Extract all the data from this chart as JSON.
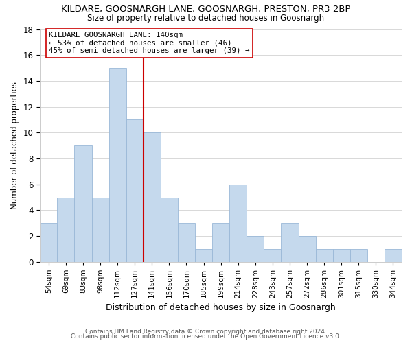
{
  "title": "KILDARE, GOOSNARGH LANE, GOOSNARGH, PRESTON, PR3 2BP",
  "subtitle": "Size of property relative to detached houses in Goosnargh",
  "xlabel": "Distribution of detached houses by size in Goosnargh",
  "ylabel": "Number of detached properties",
  "bin_labels": [
    "54sqm",
    "69sqm",
    "83sqm",
    "98sqm",
    "112sqm",
    "127sqm",
    "141sqm",
    "156sqm",
    "170sqm",
    "185sqm",
    "199sqm",
    "214sqm",
    "228sqm",
    "243sqm",
    "257sqm",
    "272sqm",
    "286sqm",
    "301sqm",
    "315sqm",
    "330sqm",
    "344sqm"
  ],
  "bar_heights": [
    3,
    5,
    9,
    5,
    15,
    11,
    10,
    5,
    3,
    1,
    3,
    6,
    2,
    1,
    3,
    2,
    1,
    1,
    1,
    0,
    1
  ],
  "bar_color": "#c5d9ed",
  "bar_edge_color": "#9ab8d8",
  "reference_line_index": 6,
  "reference_line_color": "#cc0000",
  "annotation_line1": "KILDARE GOOSNARGH LANE: 140sqm",
  "annotation_line2": "← 53% of detached houses are smaller (46)",
  "annotation_line3": "45% of semi-detached houses are larger (39) →",
  "annotation_box_color": "#ffffff",
  "annotation_box_edge": "#cc0000",
  "ylim": [
    0,
    18
  ],
  "yticks": [
    0,
    2,
    4,
    6,
    8,
    10,
    12,
    14,
    16,
    18
  ],
  "footnote1": "Contains HM Land Registry data © Crown copyright and database right 2024.",
  "footnote2": "Contains public sector information licensed under the Open Government Licence v3.0.",
  "background_color": "#ffffff",
  "grid_color": "#d8d8d8"
}
